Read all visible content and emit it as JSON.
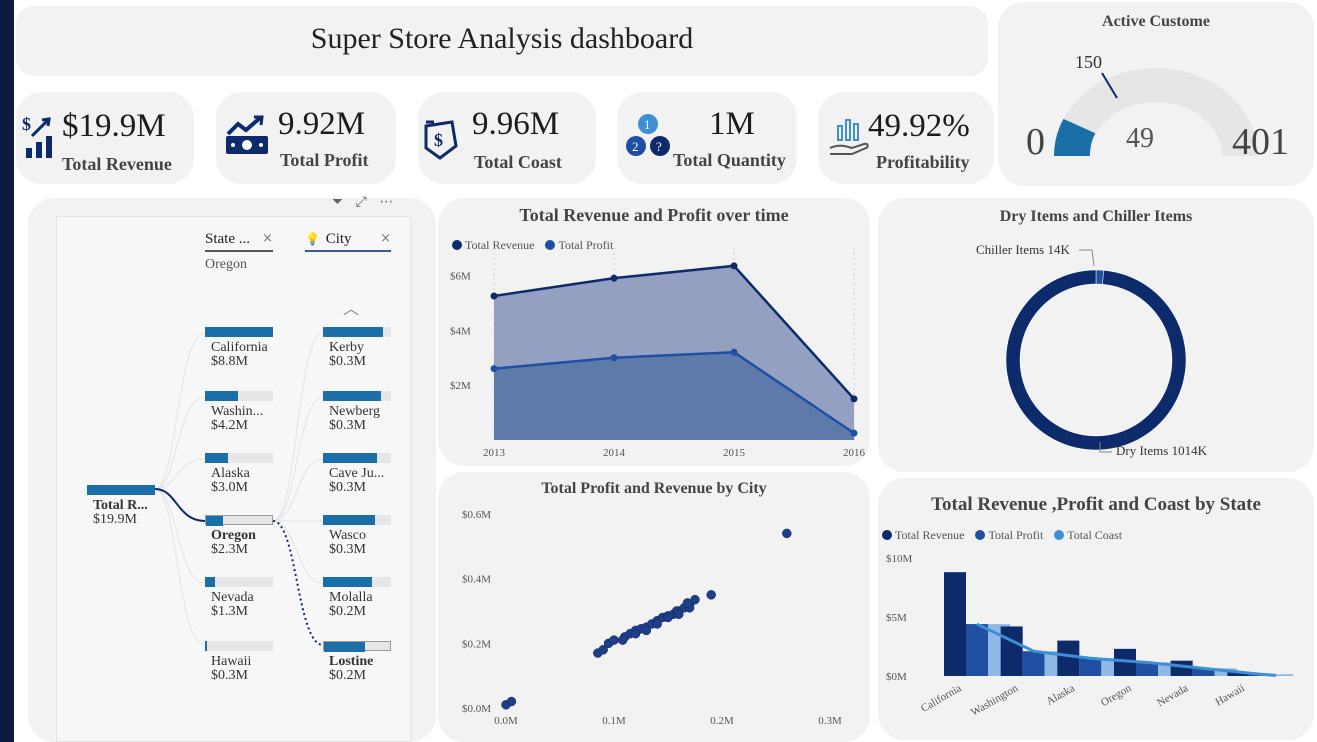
{
  "header": {
    "title": "Super Store Analysis dashboard"
  },
  "kpis": [
    {
      "value": "$19.9M",
      "label": "Total Revenue",
      "icon": "revenue-chart-icon"
    },
    {
      "value": "9.92M",
      "label": "Total Profit",
      "icon": "profit-money-icon"
    },
    {
      "value": "9.96M",
      "label": "Total Coast",
      "icon": "coast-tag-icon"
    },
    {
      "value": "1M",
      "label": "Total Quantity",
      "icon": "quantity-numbers-icon"
    },
    {
      "value": "49.92%",
      "label": "Profitability",
      "icon": "profitability-hand-icon"
    }
  ],
  "gauge": {
    "title": "Active Custome",
    "min": "0",
    "max": "401",
    "value": "49",
    "target": "150"
  },
  "decomposition": {
    "toolbar": {
      "filter_icon": "filter-icon",
      "focus_icon": "focus-mode-icon",
      "more_icon": "more-options-icon"
    },
    "root": {
      "label": "Total R...",
      "value": "$19.9M"
    },
    "level1": {
      "header": "State ...",
      "selected": "Oregon"
    },
    "level2": {
      "header": "City"
    },
    "states": [
      {
        "name": "California",
        "value": "$8.8M",
        "fraction": 1.0
      },
      {
        "name": "Washin...",
        "value": "$4.2M",
        "fraction": 0.48
      },
      {
        "name": "Alaska",
        "value": "$3.0M",
        "fraction": 0.34
      },
      {
        "name": "Oregon",
        "value": "$2.3M",
        "fraction": 0.26
      },
      {
        "name": "Nevada",
        "value": "$1.3M",
        "fraction": 0.15
      },
      {
        "name": "Hawaii",
        "value": "$0.3M",
        "fraction": 0.03
      }
    ],
    "cities": [
      {
        "name": "Kerby",
        "value": "$0.3M",
        "fraction": 0.88
      },
      {
        "name": "Newberg",
        "value": "$0.3M",
        "fraction": 0.85
      },
      {
        "name": "Cave Ju...",
        "value": "$0.3M",
        "fraction": 0.8
      },
      {
        "name": "Wasco",
        "value": "$0.3M",
        "fraction": 0.77
      },
      {
        "name": "Molalla",
        "value": "$0.2M",
        "fraction": 0.72
      },
      {
        "name": "Lostine",
        "value": "$0.2M",
        "fraction": 0.62
      }
    ]
  },
  "colors": {
    "revenue": "#0d2a6b",
    "profit": "#1e4fa0",
    "coast": "#3d8fd6",
    "accent": "#1a6fa8",
    "area_revenue": "#93a0c2",
    "area_profit": "#5e7aab"
  },
  "chart_data": [
    {
      "type": "area",
      "title": "Total Revenue and Profit over time",
      "x": [
        "2013",
        "2014",
        "2015",
        "2016"
      ],
      "series": [
        {
          "name": "Total Revenue",
          "values": [
            5.25,
            5.9,
            6.35,
            1.5
          ]
        },
        {
          "name": "Total Profit",
          "values": [
            2.6,
            3.0,
            3.2,
            0.25
          ]
        }
      ],
      "yticks": [
        "$2M",
        "$4M",
        "$6M"
      ],
      "ylim": [
        0,
        7.0
      ]
    },
    {
      "type": "pie",
      "title": "Dry Items and Chiller Items",
      "slices": [
        {
          "label": "Chiller Items 14K",
          "value": 14
        },
        {
          "label": "Dry Items 1014K",
          "value": 1014
        }
      ]
    },
    {
      "type": "scatter",
      "title": "Total Profit and Revenue by City",
      "xticks": [
        "0.0M",
        "0.1M",
        "0.2M",
        "0.3M"
      ],
      "yticks": [
        "$0.0M",
        "$0.2M",
        "$0.4M",
        "$0.6M"
      ],
      "xlim": [
        0,
        0.3
      ],
      "ylim": [
        0,
        0.6
      ],
      "points": [
        [
          0.0,
          0.01
        ],
        [
          0.005,
          0.02
        ],
        [
          0.085,
          0.17
        ],
        [
          0.09,
          0.18
        ],
        [
          0.095,
          0.2
        ],
        [
          0.1,
          0.21
        ],
        [
          0.11,
          0.22
        ],
        [
          0.115,
          0.23
        ],
        [
          0.12,
          0.24
        ],
        [
          0.125,
          0.245
        ],
        [
          0.13,
          0.25
        ],
        [
          0.135,
          0.26
        ],
        [
          0.14,
          0.27
        ],
        [
          0.145,
          0.28
        ],
        [
          0.15,
          0.285
        ],
        [
          0.155,
          0.29
        ],
        [
          0.16,
          0.3
        ],
        [
          0.165,
          0.31
        ],
        [
          0.17,
          0.32
        ],
        [
          0.175,
          0.335
        ],
        [
          0.19,
          0.35
        ],
        [
          0.12,
          0.23
        ],
        [
          0.13,
          0.24
        ],
        [
          0.14,
          0.26
        ],
        [
          0.15,
          0.28
        ],
        [
          0.158,
          0.3
        ],
        [
          0.16,
          0.29
        ],
        [
          0.17,
          0.31
        ],
        [
          0.168,
          0.325
        ],
        [
          0.108,
          0.21
        ],
        [
          0.26,
          0.54
        ]
      ]
    },
    {
      "type": "bar",
      "title": "Total Revenue ,Profit and Coast by State",
      "categories": [
        "California",
        "Washington",
        "Alaska",
        "Oregon",
        "Nevada",
        "Hawaii"
      ],
      "series": [
        {
          "name": "Total Revenue",
          "values": [
            8.8,
            4.2,
            3.0,
            2.3,
            1.3,
            0.3
          ]
        },
        {
          "name": "Total Profit",
          "values": [
            4.4,
            2.1,
            1.5,
            1.15,
            0.65,
            0.15
          ]
        },
        {
          "name": "Total Coast",
          "values": [
            4.4,
            2.1,
            1.5,
            1.15,
            0.65,
            0.15
          ]
        }
      ],
      "yticks": [
        "$0M",
        "$5M",
        "$10M"
      ],
      "ylim": [
        0,
        10
      ]
    }
  ]
}
